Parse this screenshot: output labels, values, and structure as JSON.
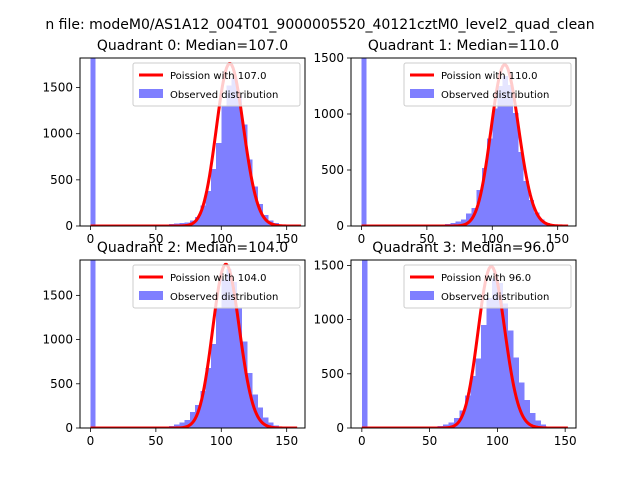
{
  "suptitle": "n file: modeM0/AS1A12_004T01_9000005520_40121cztM0_level2_quad_clean",
  "colors": {
    "hist": "#7f7fff",
    "curve": "#ff0000",
    "axis": "#000000",
    "legend_border": "#cccccc"
  },
  "chart_data": [
    {
      "type": "bar",
      "title": "Quadrant 0: Median=107.0",
      "xlim": [
        -8,
        164
      ],
      "ylim": [
        0,
        1820
      ],
      "xticks": [
        0,
        50,
        100,
        150
      ],
      "yticks": [
        0,
        500,
        1000,
        1500
      ],
      "legend": [
        "Poission with 107.0",
        "Observed distribution"
      ],
      "legend_loc": "upper right",
      "bin_width": 4,
      "hist": [
        {
          "x": 0,
          "y": 1820
        },
        {
          "x": 4,
          "y": 10
        },
        {
          "x": 8,
          "y": 5
        },
        {
          "x": 12,
          "y": 5
        },
        {
          "x": 16,
          "y": 5
        },
        {
          "x": 20,
          "y": 5
        },
        {
          "x": 24,
          "y": 5
        },
        {
          "x": 28,
          "y": 5
        },
        {
          "x": 32,
          "y": 5
        },
        {
          "x": 36,
          "y": 5
        },
        {
          "x": 40,
          "y": 5
        },
        {
          "x": 44,
          "y": 5
        },
        {
          "x": 48,
          "y": 5
        },
        {
          "x": 52,
          "y": 5
        },
        {
          "x": 56,
          "y": 10
        },
        {
          "x": 60,
          "y": 20
        },
        {
          "x": 64,
          "y": 25
        },
        {
          "x": 68,
          "y": 30
        },
        {
          "x": 72,
          "y": 40
        },
        {
          "x": 76,
          "y": 60
        },
        {
          "x": 80,
          "y": 100
        },
        {
          "x": 84,
          "y": 220
        },
        {
          "x": 88,
          "y": 380
        },
        {
          "x": 92,
          "y": 620
        },
        {
          "x": 96,
          "y": 900
        },
        {
          "x": 100,
          "y": 1300
        },
        {
          "x": 104,
          "y": 1520
        },
        {
          "x": 108,
          "y": 1600
        },
        {
          "x": 112,
          "y": 1420
        },
        {
          "x": 116,
          "y": 1100
        },
        {
          "x": 120,
          "y": 720
        },
        {
          "x": 124,
          "y": 430
        },
        {
          "x": 128,
          "y": 240
        },
        {
          "x": 132,
          "y": 120
        },
        {
          "x": 136,
          "y": 60
        },
        {
          "x": 140,
          "y": 30
        },
        {
          "x": 144,
          "y": 15
        },
        {
          "x": 148,
          "y": 8
        },
        {
          "x": 152,
          "y": 5
        }
      ],
      "poisson_lambda": 107.0,
      "poisson_peak": 1760,
      "curve_x_range": [
        0,
        161
      ]
    },
    {
      "type": "bar",
      "title": "Quadrant 1: Median=110.0",
      "xlim": [
        -8,
        164
      ],
      "ylim": [
        0,
        1500
      ],
      "xticks": [
        0,
        50,
        100,
        150
      ],
      "yticks": [
        0,
        500,
        1000,
        1500
      ],
      "legend": [
        "Poission with 110.0",
        "Observed distribution"
      ],
      "legend_loc": "upper right",
      "bin_width": 4,
      "hist": [
        {
          "x": 0,
          "y": 1500
        },
        {
          "x": 4,
          "y": 10
        },
        {
          "x": 8,
          "y": 5
        },
        {
          "x": 12,
          "y": 5
        },
        {
          "x": 16,
          "y": 5
        },
        {
          "x": 20,
          "y": 5
        },
        {
          "x": 24,
          "y": 5
        },
        {
          "x": 28,
          "y": 5
        },
        {
          "x": 32,
          "y": 5
        },
        {
          "x": 36,
          "y": 5
        },
        {
          "x": 40,
          "y": 5
        },
        {
          "x": 44,
          "y": 5
        },
        {
          "x": 48,
          "y": 5
        },
        {
          "x": 52,
          "y": 5
        },
        {
          "x": 56,
          "y": 10
        },
        {
          "x": 60,
          "y": 15
        },
        {
          "x": 64,
          "y": 20
        },
        {
          "x": 68,
          "y": 25
        },
        {
          "x": 72,
          "y": 40
        },
        {
          "x": 76,
          "y": 60
        },
        {
          "x": 80,
          "y": 110
        },
        {
          "x": 84,
          "y": 160
        },
        {
          "x": 88,
          "y": 320
        },
        {
          "x": 92,
          "y": 520
        },
        {
          "x": 96,
          "y": 780
        },
        {
          "x": 100,
          "y": 1050
        },
        {
          "x": 104,
          "y": 1250
        },
        {
          "x": 108,
          "y": 1340
        },
        {
          "x": 112,
          "y": 1260
        },
        {
          "x": 116,
          "y": 1010
        },
        {
          "x": 120,
          "y": 660
        },
        {
          "x": 124,
          "y": 400
        },
        {
          "x": 128,
          "y": 230
        },
        {
          "x": 132,
          "y": 120
        },
        {
          "x": 136,
          "y": 60
        },
        {
          "x": 140,
          "y": 25
        },
        {
          "x": 144,
          "y": 12
        },
        {
          "x": 148,
          "y": 6
        },
        {
          "x": 152,
          "y": 5
        }
      ],
      "poisson_lambda": 110.0,
      "poisson_peak": 1440,
      "curve_x_range": [
        0,
        158
      ]
    },
    {
      "type": "bar",
      "title": "Quadrant 2: Median=104.0",
      "xlim": [
        -8,
        164
      ],
      "ylim": [
        0,
        1900
      ],
      "xticks": [
        0,
        50,
        100,
        150
      ],
      "yticks": [
        0,
        500,
        1000,
        1500
      ],
      "legend": [
        "Poission with 104.0",
        "Observed distribution"
      ],
      "legend_loc": "upper right",
      "bin_width": 4,
      "hist": [
        {
          "x": 0,
          "y": 1900
        },
        {
          "x": 4,
          "y": 10
        },
        {
          "x": 8,
          "y": 5
        },
        {
          "x": 12,
          "y": 5
        },
        {
          "x": 16,
          "y": 5
        },
        {
          "x": 20,
          "y": 5
        },
        {
          "x": 24,
          "y": 5
        },
        {
          "x": 28,
          "y": 5
        },
        {
          "x": 32,
          "y": 5
        },
        {
          "x": 36,
          "y": 5
        },
        {
          "x": 40,
          "y": 5
        },
        {
          "x": 44,
          "y": 5
        },
        {
          "x": 48,
          "y": 5
        },
        {
          "x": 52,
          "y": 10
        },
        {
          "x": 56,
          "y": 15
        },
        {
          "x": 60,
          "y": 25
        },
        {
          "x": 64,
          "y": 40
        },
        {
          "x": 68,
          "y": 60
        },
        {
          "x": 72,
          "y": 90
        },
        {
          "x": 76,
          "y": 180
        },
        {
          "x": 80,
          "y": 260
        },
        {
          "x": 84,
          "y": 420
        },
        {
          "x": 88,
          "y": 680
        },
        {
          "x": 92,
          "y": 950
        },
        {
          "x": 96,
          "y": 1350
        },
        {
          "x": 100,
          "y": 1680
        },
        {
          "x": 104,
          "y": 1800
        },
        {
          "x": 108,
          "y": 1650
        },
        {
          "x": 112,
          "y": 1350
        },
        {
          "x": 116,
          "y": 980
        },
        {
          "x": 120,
          "y": 620
        },
        {
          "x": 124,
          "y": 380
        },
        {
          "x": 128,
          "y": 230
        },
        {
          "x": 132,
          "y": 120
        },
        {
          "x": 136,
          "y": 60
        },
        {
          "x": 140,
          "y": 30
        },
        {
          "x": 144,
          "y": 12
        },
        {
          "x": 148,
          "y": 6
        },
        {
          "x": 152,
          "y": 5
        }
      ],
      "poisson_lambda": 104.0,
      "poisson_peak": 1850,
      "curve_x_range": [
        0,
        158
      ]
    },
    {
      "type": "bar",
      "title": "Quadrant 3: Median=96.0",
      "xlim": [
        -8,
        158
      ],
      "ylim": [
        0,
        1550
      ],
      "xticks": [
        0,
        50,
        100,
        150
      ],
      "yticks": [
        0,
        500,
        1000,
        1500
      ],
      "legend": [
        "Poission with 96.0",
        "Observed distribution"
      ],
      "legend_loc": "upper right",
      "bin_width": 4,
      "hist": [
        {
          "x": 0,
          "y": 1550
        },
        {
          "x": 4,
          "y": 10
        },
        {
          "x": 8,
          "y": 5
        },
        {
          "x": 12,
          "y": 5
        },
        {
          "x": 16,
          "y": 5
        },
        {
          "x": 20,
          "y": 5
        },
        {
          "x": 24,
          "y": 5
        },
        {
          "x": 28,
          "y": 5
        },
        {
          "x": 32,
          "y": 5
        },
        {
          "x": 36,
          "y": 5
        },
        {
          "x": 40,
          "y": 5
        },
        {
          "x": 44,
          "y": 5
        },
        {
          "x": 48,
          "y": 5
        },
        {
          "x": 52,
          "y": 10
        },
        {
          "x": 56,
          "y": 20
        },
        {
          "x": 60,
          "y": 30
        },
        {
          "x": 64,
          "y": 50
        },
        {
          "x": 68,
          "y": 90
        },
        {
          "x": 72,
          "y": 160
        },
        {
          "x": 76,
          "y": 300
        },
        {
          "x": 80,
          "y": 480
        },
        {
          "x": 84,
          "y": 640
        },
        {
          "x": 88,
          "y": 950
        },
        {
          "x": 92,
          "y": 1200
        },
        {
          "x": 96,
          "y": 1380
        },
        {
          "x": 100,
          "y": 1340
        },
        {
          "x": 104,
          "y": 1150
        },
        {
          "x": 108,
          "y": 900
        },
        {
          "x": 112,
          "y": 650
        },
        {
          "x": 116,
          "y": 420
        },
        {
          "x": 120,
          "y": 260
        },
        {
          "x": 124,
          "y": 140
        },
        {
          "x": 128,
          "y": 70
        },
        {
          "x": 132,
          "y": 30
        },
        {
          "x": 136,
          "y": 15
        },
        {
          "x": 140,
          "y": 8
        },
        {
          "x": 144,
          "y": 5
        },
        {
          "x": 148,
          "y": 5
        }
      ],
      "poisson_lambda": 96.0,
      "poisson_peak": 1490,
      "curve_x_range": [
        0,
        152
      ]
    }
  ]
}
